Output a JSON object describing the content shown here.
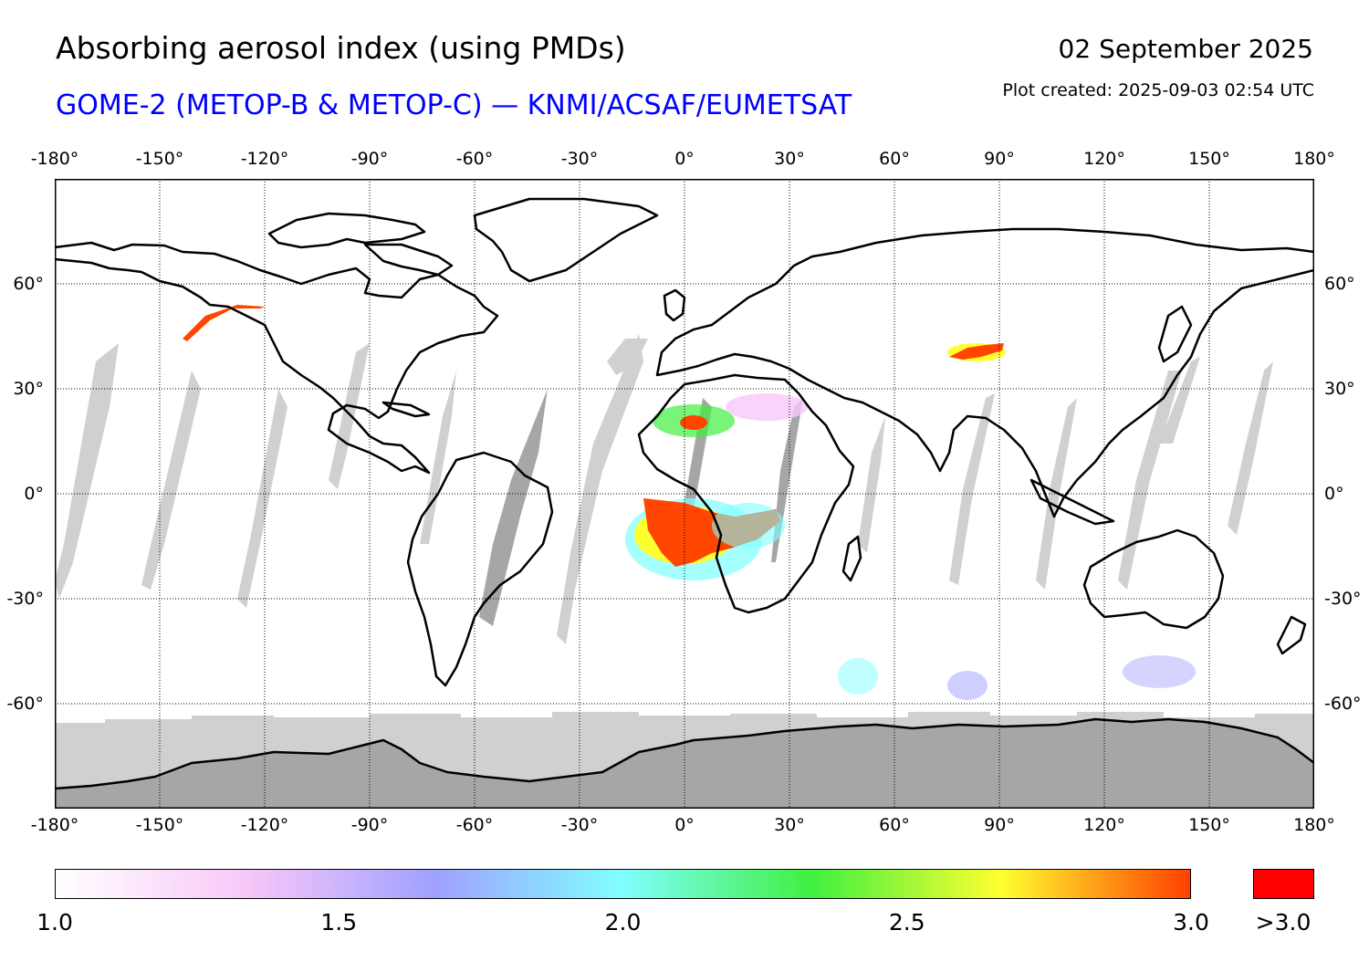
{
  "header": {
    "title": "Absorbing aerosol index (using PMDs)",
    "subtitle": "GOME-2 (METOP-B & METOP-C) — KNMI/ACSAF/EUMETSAT",
    "subtitle_color": "#0000ff",
    "date": "02 September 2025",
    "created": "Plot created: 2025-09-03 02:54 UTC"
  },
  "map": {
    "projection": "equirectangular",
    "lon_range": [
      -180,
      180
    ],
    "lat_range": [
      -90,
      90
    ],
    "lon_ticks": [
      {
        "value": -180,
        "label": "-180°"
      },
      {
        "value": -150,
        "label": "-150°"
      },
      {
        "value": -120,
        "label": "-120°"
      },
      {
        "value": -90,
        "label": "-90°"
      },
      {
        "value": -60,
        "label": "-60°"
      },
      {
        "value": -30,
        "label": "-30°"
      },
      {
        "value": 0,
        "label": "0°"
      },
      {
        "value": 30,
        "label": "30°"
      },
      {
        "value": 60,
        "label": "60°"
      },
      {
        "value": 90,
        "label": "90°"
      },
      {
        "value": 120,
        "label": "120°"
      },
      {
        "value": 150,
        "label": "150°"
      },
      {
        "value": 180,
        "label": "180°"
      }
    ],
    "lat_ticks": [
      {
        "value": 60,
        "label": "60°"
      },
      {
        "value": 30,
        "label": "30°"
      },
      {
        "value": 0,
        "label": "0°"
      },
      {
        "value": -30,
        "label": "-30°"
      },
      {
        "value": -60,
        "label": "-60°"
      }
    ],
    "colors": {
      "no_data": "#d0d0d0",
      "polar_no_data": "#a6a6a6",
      "coastline": "#000000",
      "high": "#ff4500"
    }
  },
  "colorbar": {
    "min": 1.0,
    "max": 3.0,
    "stops": [
      "#ffffff",
      "#f8c8f8",
      "#a0a0ff",
      "#80ffff",
      "#40f040",
      "#ffff30",
      "#ff4000"
    ],
    "labels": [
      {
        "value": 1.0,
        "label": "1.0"
      },
      {
        "value": 1.5,
        "label": "1.5"
      },
      {
        "value": 2.0,
        "label": "2.0"
      },
      {
        "value": 2.5,
        "label": "2.5"
      },
      {
        "value": 3.0,
        "label": "3.0"
      }
    ],
    "overflow_label": ">3.0",
    "overflow_color": "#ff0000"
  }
}
